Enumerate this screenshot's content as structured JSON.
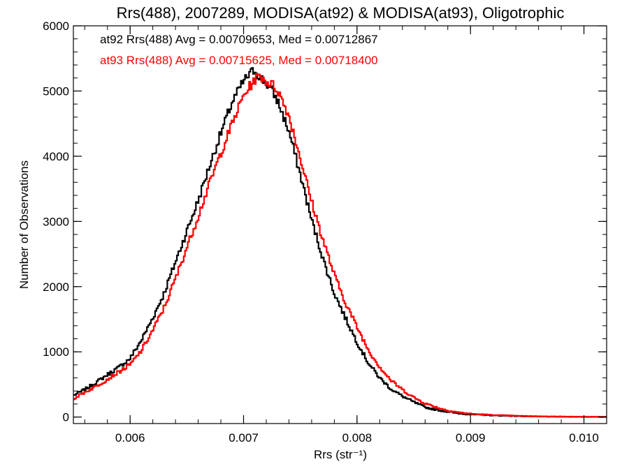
{
  "chart_data": {
    "type": "line",
    "title": "Rrs(488), 2007289, MODISA(at92) & MODISA(at93), Oligotrophic",
    "xlabel": "Rrs (str⁻¹)",
    "ylabel": "Number of Observations",
    "xlim": [
      0.0055,
      0.0102
    ],
    "ylim": [
      -100,
      6000
    ],
    "x_ticks": [
      {
        "value": 0.006,
        "label": "0.006"
      },
      {
        "value": 0.007,
        "label": "0.007"
      },
      {
        "value": 0.008,
        "label": "0.008"
      },
      {
        "value": 0.009,
        "label": "0.009"
      },
      {
        "value": 0.01,
        "label": "0.010"
      }
    ],
    "y_ticks": [
      {
        "value": 0,
        "label": "0"
      },
      {
        "value": 1000,
        "label": "1000"
      },
      {
        "value": 2000,
        "label": "2000"
      },
      {
        "value": 3000,
        "label": "3000"
      },
      {
        "value": 4000,
        "label": "4000"
      },
      {
        "value": 5000,
        "label": "5000"
      },
      {
        "value": 6000,
        "label": "6000"
      }
    ],
    "legend_position": "top-left",
    "series": [
      {
        "name": "at92",
        "legend": "at92 Rrs(488) Avg = 0.00709653, Med = 0.00712867",
        "color": "#000000",
        "step": true,
        "x": [
          0.0055,
          0.0056,
          0.0057,
          0.0058,
          0.0059,
          0.006,
          0.0061,
          0.0062,
          0.0063,
          0.0064,
          0.0065,
          0.0066,
          0.0067,
          0.0068,
          0.0069,
          0.007,
          0.00705,
          0.0071,
          0.00715,
          0.0072,
          0.00725,
          0.0073,
          0.0074,
          0.0075,
          0.0076,
          0.0077,
          0.0078,
          0.0079,
          0.008,
          0.0081,
          0.0082,
          0.0083,
          0.0084,
          0.0085,
          0.0086,
          0.0087,
          0.0088,
          0.0089,
          0.009,
          0.0092,
          0.0094,
          0.0096,
          0.0098,
          0.01,
          0.0102
        ],
        "y": [
          330,
          420,
          530,
          650,
          760,
          900,
          1180,
          1520,
          1900,
          2380,
          2850,
          3320,
          3850,
          4350,
          4830,
          5150,
          5250,
          5330,
          5200,
          5120,
          5000,
          4850,
          4380,
          3720,
          3020,
          2430,
          1900,
          1510,
          1150,
          830,
          600,
          430,
          320,
          230,
          150,
          110,
          80,
          55,
          40,
          25,
          15,
          8,
          5,
          3,
          2
        ]
      },
      {
        "name": "at93",
        "legend": "at93 Rrs(488) Avg = 0.00715625, Med = 0.00718400",
        "color": "#ff0000",
        "step": true,
        "x": [
          0.0055,
          0.0056,
          0.0057,
          0.0058,
          0.0059,
          0.006,
          0.0061,
          0.0062,
          0.0063,
          0.0064,
          0.0065,
          0.0066,
          0.0067,
          0.0068,
          0.0069,
          0.007,
          0.0071,
          0.00715,
          0.0072,
          0.00725,
          0.0073,
          0.0074,
          0.0075,
          0.0076,
          0.0077,
          0.0078,
          0.0079,
          0.008,
          0.0081,
          0.0082,
          0.0083,
          0.0084,
          0.0085,
          0.0086,
          0.0087,
          0.0088,
          0.0089,
          0.009,
          0.0092,
          0.0094,
          0.0096,
          0.0098,
          0.01,
          0.0102
        ],
        "y": [
          280,
          380,
          470,
          580,
          690,
          800,
          1020,
          1330,
          1680,
          2120,
          2600,
          3080,
          3580,
          4050,
          4500,
          4930,
          5180,
          5230,
          5150,
          5100,
          5020,
          4620,
          3980,
          3300,
          2720,
          2180,
          1750,
          1380,
          1030,
          770,
          560,
          420,
          300,
          210,
          150,
          100,
          70,
          50,
          30,
          18,
          10,
          6,
          3,
          2
        ]
      }
    ]
  }
}
